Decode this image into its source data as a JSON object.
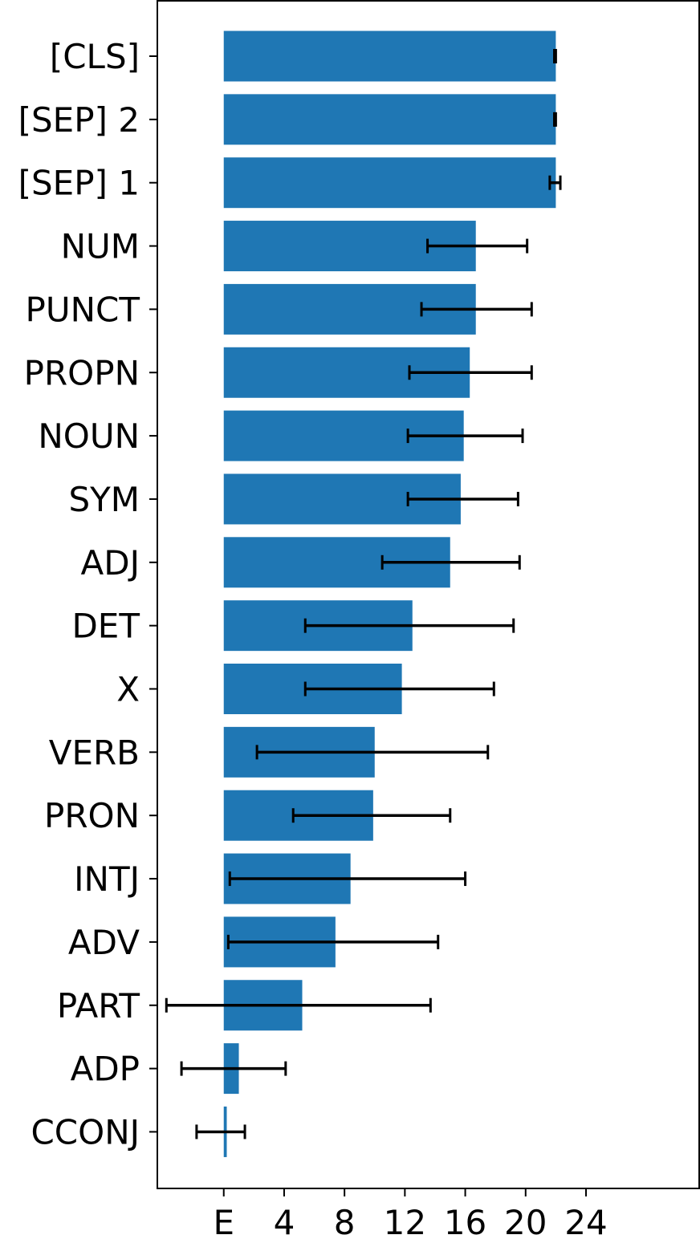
{
  "chart_data": {
    "type": "bar",
    "orientation": "horizontal",
    "categories": [
      "[CLS]",
      "[SEP] 2",
      "[SEP] 1",
      "NUM",
      "PUNCT",
      "PROPN",
      "NOUN",
      "SYM",
      "ADJ",
      "DET",
      "X",
      "VERB",
      "PRON",
      "INTJ",
      "ADV",
      "PART",
      "ADP",
      "CCONJ"
    ],
    "values": [
      22.0,
      22.0,
      22.0,
      16.7,
      16.7,
      16.3,
      15.9,
      15.7,
      15.0,
      12.5,
      11.8,
      10.0,
      9.9,
      8.4,
      7.4,
      5.2,
      1.0,
      0.2
    ],
    "error_low": [
      21.9,
      21.9,
      21.6,
      13.5,
      13.1,
      12.3,
      12.2,
      12.2,
      10.5,
      5.4,
      5.4,
      2.2,
      4.6,
      0.4,
      0.3,
      -3.8,
      -2.8,
      -1.8
    ],
    "error_high": [
      22.0,
      22.0,
      22.3,
      20.1,
      20.4,
      20.4,
      19.8,
      19.5,
      19.6,
      19.2,
      17.9,
      17.5,
      15.0,
      16.0,
      14.2,
      13.7,
      4.1,
      1.4
    ],
    "x_ticks": [
      "E",
      "4",
      "8",
      "12",
      "16",
      "20",
      "24"
    ],
    "x_tick_values": [
      0,
      4,
      8,
      12,
      16,
      20,
      24
    ],
    "xlim": [
      -4.4,
      31.5
    ],
    "title": "",
    "xlabel": "",
    "ylabel": "",
    "grid": false,
    "colors": {
      "bar": "#1f77b4",
      "error": "#000000",
      "axis": "#000000"
    }
  }
}
